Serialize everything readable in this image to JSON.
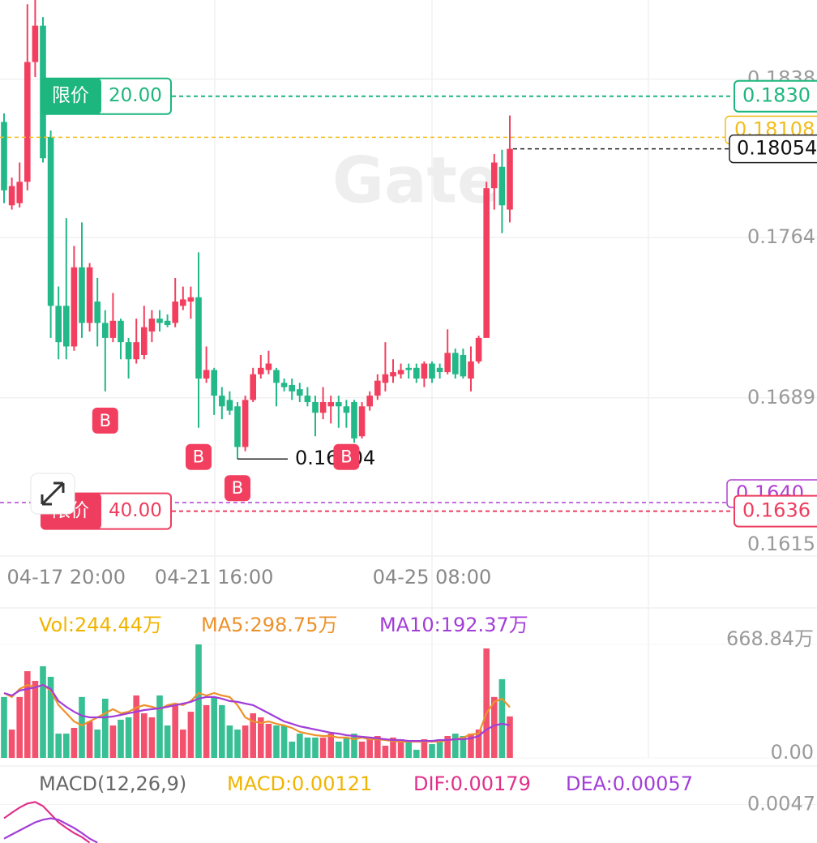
{
  "chart_data": [
    {
      "type": "candlestick",
      "watermark": "Gate",
      "categories": [
        null,
        null,
        null,
        null,
        null,
        null,
        null,
        null,
        "04-17 20:00",
        null,
        null,
        null,
        null,
        null,
        null,
        null,
        null,
        null,
        null,
        null,
        null,
        null,
        null,
        null,
        null,
        null,
        null,
        "04-21 16:00",
        null,
        null,
        null,
        null,
        null,
        null,
        null,
        null,
        null,
        null,
        null,
        null,
        null,
        null,
        null,
        null,
        null,
        null,
        null,
        null,
        null,
        null,
        null,
        null,
        null,
        null,
        null,
        "04-25 08:00",
        null,
        null,
        null,
        null,
        null,
        null,
        null,
        null,
        null,
        null
      ],
      "open": [
        0.1818,
        0.1779,
        0.178,
        0.179,
        0.1846,
        0.1863,
        0.1811,
        0.1732,
        0.1732,
        0.1713,
        0.175,
        0.1724,
        0.1734,
        0.1724,
        0.1717,
        0.1725,
        0.1715,
        0.1707,
        0.1709,
        0.172,
        0.1726,
        0.1725,
        0.1724,
        0.1732,
        0.1734,
        0.1736,
        0.1698,
        0.1702,
        0.169,
        0.1688,
        0.1685,
        0.1666,
        0.1688,
        0.17,
        0.1702,
        0.1702,
        0.1696,
        0.1695,
        0.1693,
        0.169,
        0.1687,
        0.1682,
        0.1685,
        0.1687,
        0.1685,
        0.1687,
        0.1671,
        0.1685,
        0.169,
        0.1696,
        0.1699,
        0.17,
        0.1703,
        0.1703,
        0.1698,
        0.1705,
        0.1703,
        0.1701,
        0.171,
        0.1709,
        0.1698,
        0.1706,
        0.1717,
        0.1787,
        0.1797,
        0.1777
      ],
      "high": [
        0.1822,
        0.1792,
        0.1799,
        0.1873,
        0.1875,
        0.1867,
        0.1814,
        0.1741,
        0.1773,
        0.176,
        0.1771,
        0.1752,
        0.1745,
        0.173,
        0.1738,
        0.1726,
        0.1717,
        0.1726,
        0.1732,
        0.173,
        0.173,
        0.1728,
        0.1745,
        0.1741,
        0.1741,
        0.1757,
        0.1713,
        0.1703,
        0.1694,
        0.1692,
        0.1687,
        0.169,
        0.1703,
        0.1709,
        0.1711,
        0.1703,
        0.1698,
        0.1698,
        0.1696,
        0.1694,
        0.169,
        0.1694,
        0.169,
        0.169,
        0.1688,
        0.1688,
        0.1687,
        0.1692,
        0.17,
        0.1715,
        0.1707,
        0.1705,
        0.1705,
        0.1705,
        0.1706,
        0.1706,
        0.1705,
        0.1721,
        0.1712,
        0.1712,
        0.1713,
        0.1718,
        0.179,
        0.1803,
        0.1805,
        0.1821
      ],
      "low": [
        0.178,
        0.1777,
        0.1778,
        0.1786,
        0.1839,
        0.1799,
        0.1717,
        0.1707,
        0.1707,
        0.1711,
        0.1717,
        0.172,
        0.1713,
        0.1692,
        0.1715,
        0.1707,
        0.1698,
        0.1705,
        0.1707,
        0.1715,
        0.172,
        0.1722,
        0.1722,
        0.173,
        0.1726,
        0.1675,
        0.1696,
        0.1681,
        0.1679,
        0.1681,
        0.16604,
        0.1664,
        0.1687,
        0.1698,
        0.17,
        0.1685,
        0.1692,
        0.1688,
        0.1687,
        0.1685,
        0.1671,
        0.1679,
        0.1677,
        0.1675,
        0.1675,
        0.1668,
        0.167,
        0.1683,
        0.1688,
        0.1692,
        0.1696,
        0.1698,
        0.1698,
        0.1696,
        0.1694,
        0.1696,
        0.1698,
        0.17,
        0.1698,
        0.1698,
        0.1692,
        0.1705,
        0.1717,
        0.1777,
        0.1766,
        0.1771
      ],
      "close": [
        0.1786,
        0.1788,
        0.179,
        0.1846,
        0.1863,
        0.1801,
        0.1732,
        0.1715,
        0.1713,
        0.175,
        0.1724,
        0.175,
        0.1724,
        0.1717,
        0.1725,
        0.1715,
        0.1707,
        0.1715,
        0.1722,
        0.1726,
        0.1724,
        0.1723,
        0.1734,
        0.1735,
        0.1736,
        0.1698,
        0.1702,
        0.169,
        0.1685,
        0.1683,
        0.1666,
        0.1688,
        0.17,
        0.1703,
        0.1705,
        0.1696,
        0.1694,
        0.1692,
        0.169,
        0.1687,
        0.1682,
        0.1687,
        0.1687,
        0.1685,
        0.1682,
        0.167,
        0.1685,
        0.169,
        0.1697,
        0.17,
        0.1701,
        0.1702,
        0.1702,
        0.1698,
        0.1705,
        0.1698,
        0.1701,
        0.171,
        0.17,
        0.1699,
        0.1706,
        0.1717,
        0.1787,
        0.1799,
        0.1779,
        0.18054
      ],
      "up_color": "#f23f5f",
      "down_color": "#22b887",
      "ylim": [
        0.1615,
        0.1875
      ],
      "yticks": [
        0.1615,
        0.1689,
        0.1764,
        0.1838
      ],
      "low_annotation_index": 30,
      "buy_markers": {
        "label": "B",
        "indices": [
          13,
          25,
          30,
          44
        ]
      },
      "limit_orders": [
        {
          "label": "限价",
          "amount": "20.00",
          "price": 0.183,
          "price_label": "0.1830",
          "color": "#1db67e"
        },
        {
          "label": "限价",
          "amount": "40.00",
          "price": 0.1636,
          "price_label": "0.1636",
          "color": "#ee3d5e"
        }
      ],
      "index_price": 0.164,
      "index_price_label": "0.1640",
      "index_color": "#b03fd0",
      "mark_price": 0.18108,
      "mark_color": "#f2bd1b",
      "last_price": 0.18054
    },
    {
      "type": "bar",
      "legend": [
        {
          "text": "Vol:244.44万",
          "color": "#f0b400"
        },
        {
          "text": "MA5:298.75万",
          "color": "#ec922b"
        },
        {
          "text": "MA10:192.37万",
          "color": "#a23ed8"
        }
      ],
      "values": [
        359,
        167,
        359,
        511,
        454,
        540,
        478,
        143,
        143,
        177,
        359,
        215,
        167,
        349,
        191,
        225,
        239,
        368,
        263,
        239,
        368,
        191,
        311,
        167,
        272,
        668.84,
        311,
        359,
        311,
        191,
        167,
        191,
        263,
        239,
        201,
        191,
        191,
        96,
        143,
        120,
        120,
        120,
        143,
        96,
        120,
        143,
        96,
        120,
        129,
        72,
        120,
        110,
        96,
        48,
        110,
        81,
        110,
        129,
        143,
        129,
        143,
        167,
        645,
        359,
        464,
        244.44
      ],
      "ma5": [
        382,
        359,
        406,
        430,
        416,
        430,
        397,
        311,
        263,
        215,
        191,
        215,
        239,
        263,
        287,
        263,
        272,
        296,
        311,
        301,
        287,
        311,
        320,
        311,
        335,
        382,
        368,
        382,
        368,
        359,
        311,
        239,
        215,
        206,
        215,
        201,
        191,
        177,
        153,
        143,
        134,
        129,
        129,
        120,
        120,
        110,
        120,
        110,
        110,
        105,
        100,
        96,
        96,
        96,
        96,
        96,
        96,
        105,
        110,
        120,
        139,
        143,
        263,
        330,
        349,
        298.75
      ],
      "ma10": [
        382,
        368,
        397,
        406,
        416,
        430,
        406,
        335,
        301,
        272,
        249,
        239,
        239,
        239,
        244,
        253,
        263,
        272,
        282,
        287,
        292,
        301,
        311,
        320,
        330,
        349,
        359,
        359,
        349,
        335,
        330,
        320,
        311,
        287,
        263,
        239,
        215,
        201,
        186,
        177,
        167,
        158,
        148,
        143,
        134,
        129,
        124,
        120,
        115,
        110,
        105,
        105,
        100,
        100,
        100,
        100,
        105,
        105,
        110,
        110,
        115,
        129,
        167,
        191,
        201,
        192.37
      ],
      "ylim": [
        0,
        668.84
      ],
      "yticks": [
        {
          "value": 0,
          "label": "0.00"
        },
        {
          "value": 668.84,
          "label": "668.84万"
        }
      ]
    },
    {
      "type": "line",
      "title": "MACD(12,26,9)",
      "legend": [
        {
          "text": "MACD:0.00121",
          "color": "#f0b400"
        },
        {
          "text": "DIF:0.00179",
          "color": "#e0308a"
        },
        {
          "text": "DEA:0.00057",
          "color": "#a23ed8"
        }
      ],
      "series": [
        {
          "color": "#e0308a",
          "values": [
            0.00416,
            0.00438,
            0.00458,
            0.00474,
            0.0048,
            0.00464,
            0.00432,
            0.004,
            0.00378,
            0.00358,
            0.00342,
            0.0032,
            null,
            null,
            null,
            null,
            null,
            null,
            null,
            null,
            null,
            null,
            null,
            null,
            null,
            null,
            null,
            null,
            null,
            null,
            null,
            null,
            null,
            null,
            null,
            null,
            null,
            null,
            null,
            null,
            null,
            null,
            null,
            null,
            null,
            null,
            null,
            null,
            null,
            null,
            null,
            null,
            null,
            null,
            null,
            null,
            null,
            null,
            null,
            null,
            null,
            null,
            null,
            null,
            null,
            null
          ]
        },
        {
          "color": "#a23ed8",
          "values": [
            0.00336,
            0.00352,
            0.00368,
            0.00384,
            0.004,
            0.0041,
            0.00416,
            0.0041,
            0.00394,
            0.00378,
            0.00358,
            0.00336,
            0.0032,
            null,
            null,
            null,
            null,
            null,
            null,
            null,
            null,
            null,
            null,
            null,
            null,
            null,
            null,
            null,
            null,
            null,
            null,
            null,
            null,
            null,
            null,
            null,
            null,
            null,
            null,
            null,
            null,
            null,
            null,
            null,
            null,
            null,
            null,
            null,
            null,
            null,
            null,
            null,
            null,
            null,
            null,
            null,
            null,
            null,
            null,
            null,
            null,
            null,
            null,
            null,
            null,
            null
          ]
        }
      ],
      "ylim": [
        0,
        0.0058
      ],
      "yticks": [
        0.0047
      ]
    }
  ]
}
